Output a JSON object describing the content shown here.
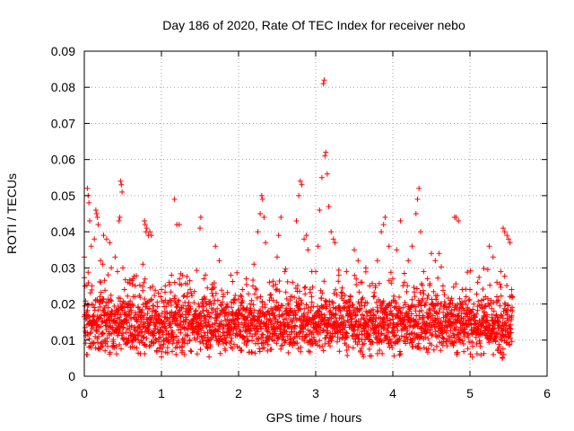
{
  "chart_data": {
    "type": "scatter",
    "title": "Day 186 of 2020, Rate Of TEC Index for receiver nebo",
    "xlabel": "GPS time / hours",
    "ylabel": "ROTI / TECUs",
    "xlim": [
      0,
      6
    ],
    "ylim": [
      0,
      0.09
    ],
    "x_ticks": [
      0,
      1,
      2,
      3,
      4,
      5,
      6
    ],
    "x_tick_labels": [
      "0",
      "1",
      "2",
      "3",
      "4",
      "5",
      "6"
    ],
    "y_ticks": [
      0,
      0.01,
      0.02,
      0.03,
      0.04,
      0.05,
      0.06,
      0.07,
      0.08,
      0.09
    ],
    "y_tick_labels": [
      "0",
      "0.01",
      "0.02",
      "0.03",
      "0.04",
      "0.05",
      "0.06",
      "0.07",
      "0.08",
      "0.09"
    ],
    "grid": true,
    "marker": "+",
    "color": "#ff0000",
    "series": [
      {
        "name": "ROTI",
        "x_range": [
          0.0,
          5.55
        ],
        "points": [
          [
            0.0,
            0.033
          ],
          [
            0.02,
            0.012
          ],
          [
            0.03,
            0.006
          ],
          [
            0.04,
            0.052
          ],
          [
            0.05,
            0.05
          ],
          [
            0.06,
            0.048
          ],
          [
            0.07,
            0.043
          ],
          [
            0.08,
            0.015
          ],
          [
            0.09,
            0.036
          ],
          [
            0.1,
            0.025
          ],
          [
            0.12,
            0.009
          ],
          [
            0.13,
            0.038
          ],
          [
            0.15,
            0.046
          ],
          [
            0.16,
            0.045
          ],
          [
            0.17,
            0.044
          ],
          [
            0.18,
            0.042
          ],
          [
            0.2,
            0.021
          ],
          [
            0.21,
            0.032
          ],
          [
            0.22,
            0.017
          ],
          [
            0.24,
            0.031
          ],
          [
            0.25,
            0.039
          ],
          [
            0.27,
            0.01
          ],
          [
            0.29,
            0.038
          ],
          [
            0.31,
            0.019
          ],
          [
            0.33,
            0.037
          ],
          [
            0.35,
            0.03
          ],
          [
            0.37,
            0.008
          ],
          [
            0.4,
            0.033
          ],
          [
            0.43,
            0.029
          ],
          [
            0.45,
            0.043
          ],
          [
            0.46,
            0.044
          ],
          [
            0.47,
            0.054
          ],
          [
            0.48,
            0.053
          ],
          [
            0.49,
            0.051
          ],
          [
            0.5,
            0.03
          ],
          [
            0.52,
            0.024
          ],
          [
            0.55,
            0.02
          ],
          [
            0.58,
            0.018
          ],
          [
            0.6,
            0.008
          ],
          [
            0.63,
            0.027
          ],
          [
            0.66,
            0.025
          ],
          [
            0.7,
            0.019
          ],
          [
            0.73,
            0.013
          ],
          [
            0.76,
            0.031
          ],
          [
            0.78,
            0.043
          ],
          [
            0.79,
            0.042
          ],
          [
            0.8,
            0.04
          ],
          [
            0.81,
            0.041
          ],
          [
            0.83,
            0.039
          ],
          [
            0.85,
            0.04
          ],
          [
            0.87,
            0.039
          ],
          [
            0.9,
            0.015
          ],
          [
            0.93,
            0.018
          ],
          [
            0.96,
            0.023
          ],
          [
            1.0,
            0.024
          ],
          [
            1.05,
            0.025
          ],
          [
            1.1,
            0.026
          ],
          [
            1.13,
            0.028
          ],
          [
            1.17,
            0.049
          ],
          [
            1.2,
            0.042
          ],
          [
            1.23,
            0.042
          ],
          [
            1.27,
            0.007
          ],
          [
            1.3,
            0.006
          ],
          [
            1.35,
            0.017
          ],
          [
            1.4,
            0.012
          ],
          [
            1.45,
            0.015
          ],
          [
            1.48,
            0.02
          ],
          [
            1.5,
            0.041
          ],
          [
            1.51,
            0.044
          ],
          [
            1.55,
            0.027
          ],
          [
            1.6,
            0.017
          ],
          [
            1.65,
            0.024
          ],
          [
            1.7,
            0.036
          ],
          [
            1.75,
            0.032
          ],
          [
            1.8,
            0.022
          ],
          [
            1.85,
            0.02
          ],
          [
            1.9,
            0.028
          ],
          [
            1.95,
            0.021
          ],
          [
            2.0,
            0.017
          ],
          [
            2.05,
            0.024
          ],
          [
            2.1,
            0.027
          ],
          [
            2.15,
            0.02
          ],
          [
            2.2,
            0.031
          ],
          [
            2.25,
            0.04
          ],
          [
            2.28,
            0.045
          ],
          [
            2.3,
            0.05
          ],
          [
            2.31,
            0.049
          ],
          [
            2.33,
            0.044
          ],
          [
            2.35,
            0.037
          ],
          [
            2.4,
            0.026
          ],
          [
            2.45,
            0.021
          ],
          [
            2.5,
            0.033
          ],
          [
            2.52,
            0.039
          ],
          [
            2.55,
            0.044
          ],
          [
            2.6,
            0.029
          ],
          [
            2.65,
            0.02
          ],
          [
            2.7,
            0.026
          ],
          [
            2.75,
            0.043
          ],
          [
            2.78,
            0.05
          ],
          [
            2.8,
            0.054
          ],
          [
            2.82,
            0.053
          ],
          [
            2.85,
            0.038
          ],
          [
            2.88,
            0.039
          ],
          [
            2.9,
            0.035
          ],
          [
            2.95,
            0.029
          ],
          [
            3.0,
            0.029
          ],
          [
            3.03,
            0.036
          ],
          [
            3.05,
            0.046
          ],
          [
            3.08,
            0.055
          ],
          [
            3.1,
            0.081
          ],
          [
            3.11,
            0.082
          ],
          [
            3.12,
            0.061
          ],
          [
            3.13,
            0.062
          ],
          [
            3.15,
            0.056
          ],
          [
            3.17,
            0.047
          ],
          [
            3.2,
            0.04
          ],
          [
            3.23,
            0.038
          ],
          [
            3.25,
            0.037
          ],
          [
            3.3,
            0.028
          ],
          [
            3.35,
            0.023
          ],
          [
            3.4,
            0.029
          ],
          [
            3.45,
            0.022
          ],
          [
            3.5,
            0.035
          ],
          [
            3.55,
            0.032
          ],
          [
            3.6,
            0.026
          ],
          [
            3.65,
            0.03
          ],
          [
            3.7,
            0.025
          ],
          [
            3.75,
            0.022
          ],
          [
            3.8,
            0.032
          ],
          [
            3.85,
            0.04
          ],
          [
            3.88,
            0.042
          ],
          [
            3.9,
            0.044
          ],
          [
            3.95,
            0.036
          ],
          [
            4.0,
            0.027
          ],
          [
            4.05,
            0.035
          ],
          [
            4.1,
            0.043
          ],
          [
            4.15,
            0.026
          ],
          [
            4.2,
            0.032
          ],
          [
            4.25,
            0.036
          ],
          [
            4.3,
            0.045
          ],
          [
            4.32,
            0.049
          ],
          [
            4.34,
            0.052
          ],
          [
            4.36,
            0.04
          ],
          [
            4.4,
            0.029
          ],
          [
            4.45,
            0.027
          ],
          [
            4.5,
            0.034
          ],
          [
            4.55,
            0.032
          ],
          [
            4.6,
            0.034
          ],
          [
            4.65,
            0.025
          ],
          [
            4.7,
            0.019
          ],
          [
            4.75,
            0.021
          ],
          [
            4.8,
            0.044
          ],
          [
            4.82,
            0.044
          ],
          [
            4.85,
            0.043
          ],
          [
            4.9,
            0.024
          ],
          [
            4.95,
            0.022
          ],
          [
            5.0,
            0.024
          ],
          [
            5.05,
            0.02
          ],
          [
            5.1,
            0.026
          ],
          [
            5.15,
            0.021
          ],
          [
            5.2,
            0.022
          ],
          [
            5.25,
            0.036
          ],
          [
            5.3,
            0.033
          ],
          [
            5.35,
            0.026
          ],
          [
            5.4,
            0.029
          ],
          [
            5.43,
            0.041
          ],
          [
            5.45,
            0.04
          ],
          [
            5.48,
            0.039
          ],
          [
            5.5,
            0.038
          ],
          [
            5.52,
            0.037
          ],
          [
            5.54,
            0.024
          ],
          [
            5.55,
            0.022
          ],
          [
            5.42,
            0.005
          ],
          [
            5.44,
            0.006
          ],
          [
            4.83,
            0.006
          ]
        ],
        "baseline_band": {
          "description": "dense cloud of points between x 0 and 5.55",
          "typical_range": [
            0.005,
            0.025
          ],
          "median": 0.014
        }
      }
    ]
  }
}
